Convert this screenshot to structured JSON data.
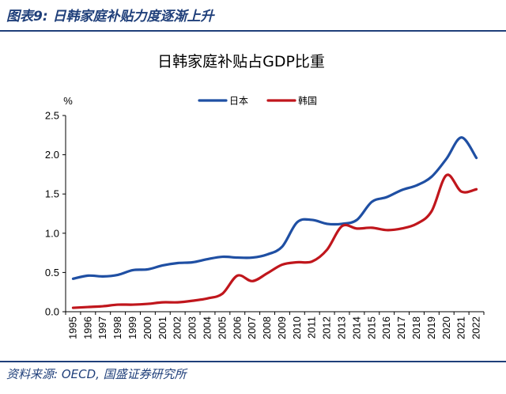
{
  "figure": {
    "caption": "图表9:  日韩家庭补贴力度逐渐上升",
    "source": "资料来源:  OECD, 国盛证券研究所"
  },
  "colors": {
    "header": "#1f3f7a",
    "japan": "#1f4fa3",
    "korea": "#c0161c"
  },
  "chart_data": {
    "type": "line",
    "title": "日韩家庭补贴占GDP比重",
    "ylabel": "%",
    "xlabel": "",
    "ylim": [
      0,
      2.5
    ],
    "yticks": [
      "0.0",
      "0.5",
      "1.0",
      "1.5",
      "2.0",
      "2.5"
    ],
    "grid": false,
    "legend_position": "top",
    "x": [
      "1995",
      "1996",
      "1997",
      "1998",
      "1999",
      "2000",
      "2001",
      "2002",
      "2003",
      "2004",
      "2005",
      "2006",
      "2007",
      "2008",
      "2009",
      "2010",
      "2011",
      "2012",
      "2013",
      "2014",
      "2015",
      "2016",
      "2017",
      "2018",
      "2019",
      "2020",
      "2021",
      "2022"
    ],
    "series": [
      {
        "name": "日本",
        "color": "#1f4fa3",
        "values": [
          0.42,
          0.46,
          0.45,
          0.47,
          0.53,
          0.54,
          0.59,
          0.62,
          0.63,
          0.67,
          0.7,
          0.69,
          0.69,
          0.73,
          0.83,
          1.14,
          1.17,
          1.12,
          1.12,
          1.17,
          1.4,
          1.46,
          1.55,
          1.61,
          1.72,
          1.95,
          2.22,
          1.96
        ]
      },
      {
        "name": "韩国",
        "color": "#c0161c",
        "values": [
          0.05,
          0.06,
          0.07,
          0.09,
          0.09,
          0.1,
          0.12,
          0.12,
          0.14,
          0.17,
          0.23,
          0.46,
          0.39,
          0.49,
          0.6,
          0.63,
          0.64,
          0.79,
          1.09,
          1.06,
          1.07,
          1.04,
          1.06,
          1.12,
          1.28,
          1.74,
          1.53,
          1.56
        ]
      }
    ]
  }
}
